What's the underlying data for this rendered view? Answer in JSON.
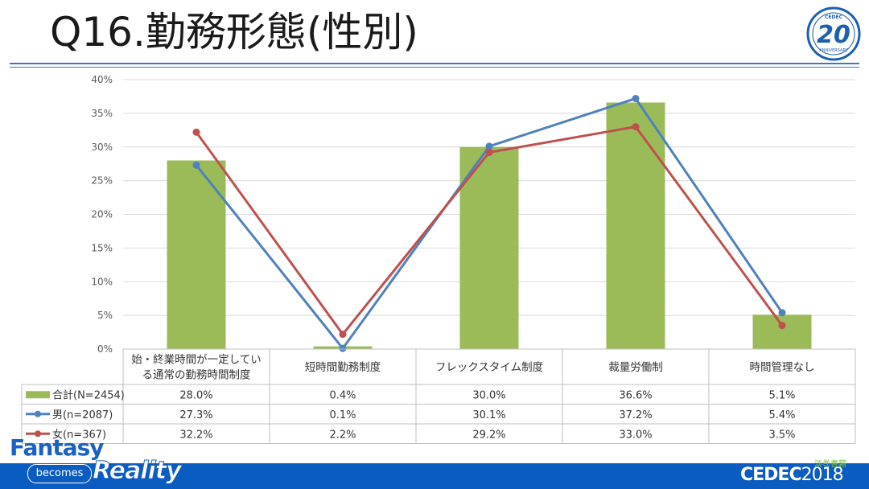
{
  "page": {
    "title": "Q16.勤務形態(性別)",
    "badge_number": "20",
    "badge_top_text": "CEDEC",
    "badge_bottom_text": "ANNIVERSARY",
    "footer_brand_1": "Fantasy",
    "footer_brand_2": "becomes",
    "footer_brand_3": "Reality",
    "footer_cedec": "CEDEC",
    "footer_year": "2018",
    "footer_watermark": "淡巻書籍"
  },
  "colors": {
    "bar": "#9bbb59",
    "male": "#4f81bd",
    "female": "#c0504d",
    "rule": "#4472c4",
    "footer": "#0b5cc0"
  },
  "chart_data": {
    "type": "bar",
    "title": "",
    "xlabel": "",
    "ylabel": "",
    "ylim": [
      0,
      40
    ],
    "yticks": [
      "0%",
      "5%",
      "10%",
      "15%",
      "20%",
      "25%",
      "30%",
      "35%",
      "40%"
    ],
    "grid": true,
    "categories": [
      [
        "始・終業時間が一定してい",
        "る通常の勤務時間制度"
      ],
      [
        "短時間勤務制度"
      ],
      [
        "フレックスタイム制度"
      ],
      [
        "裁量労働制"
      ],
      [
        "時間管理なし"
      ]
    ],
    "series": [
      {
        "name": "合計(N=2454)",
        "kind": "bar",
        "values": [
          28.0,
          0.4,
          30.0,
          36.6,
          5.1
        ],
        "labels": [
          "28.0%",
          "0.4%",
          "30.0%",
          "36.6%",
          "5.1%"
        ]
      },
      {
        "name": "男(n=2087)",
        "kind": "line",
        "values": [
          27.3,
          0.1,
          30.1,
          37.2,
          5.4
        ],
        "labels": [
          "27.3%",
          "0.1%",
          "30.1%",
          "37.2%",
          "5.4%"
        ]
      },
      {
        "name": "女(n=367)",
        "kind": "line",
        "values": [
          32.2,
          2.2,
          29.2,
          33.0,
          3.5
        ],
        "labels": [
          "32.2%",
          "2.2%",
          "29.2%",
          "33.0%",
          "3.5%"
        ]
      }
    ]
  }
}
